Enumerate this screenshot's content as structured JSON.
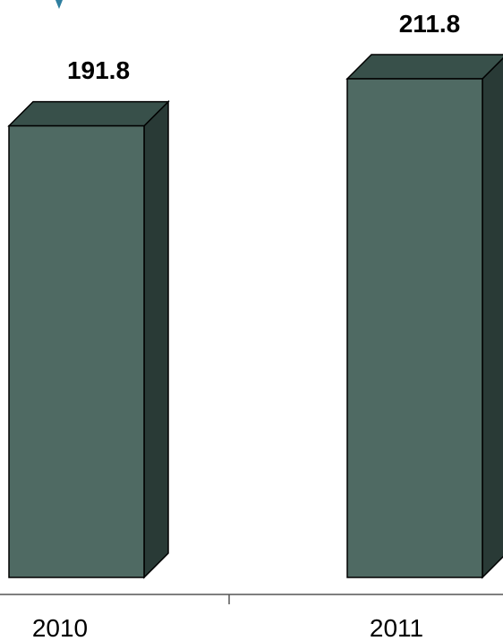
{
  "chart_data": {
    "type": "bar",
    "categories": [
      "2010",
      "2011"
    ],
    "values": [
      191.8,
      211.8
    ],
    "value_labels": [
      "191.8",
      "211.8"
    ],
    "title": "",
    "xlabel": "",
    "ylabel": "",
    "ylim": [
      0,
      211.8
    ],
    "grid": false,
    "legend": "none",
    "three_d": true,
    "colors": {
      "front": "#4f6a63",
      "top": "#38504a",
      "side": "#293a36",
      "stroke": "#000000",
      "accent_title": "#2f7fa0"
    }
  }
}
